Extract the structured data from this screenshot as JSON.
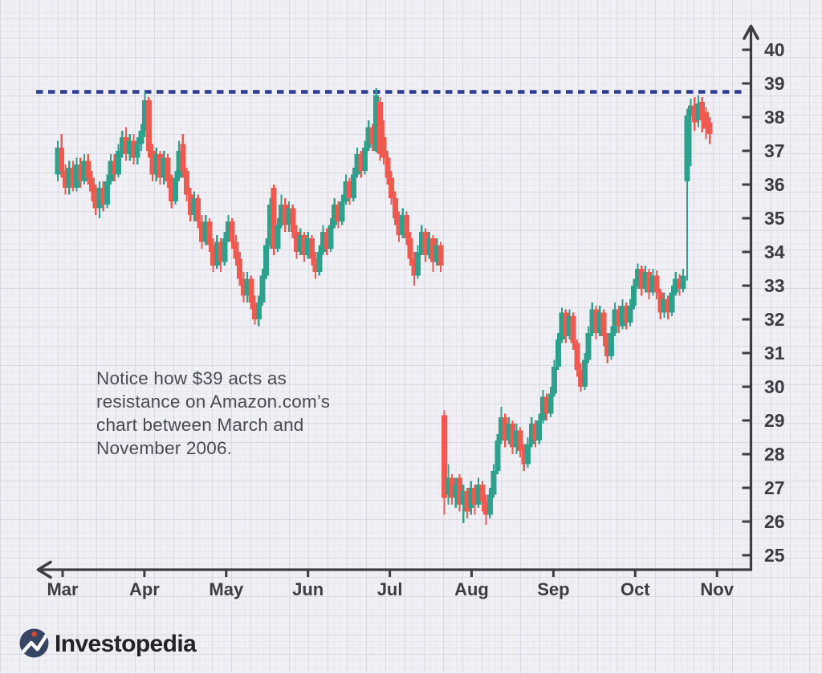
{
  "annotation": {
    "lines": [
      "Notice how $39 acts as",
      "resistance on Amazon.com’s",
      "chart between March and",
      "November 2006."
    ]
  },
  "logo": {
    "text": "Investopedia",
    "mark_colors": {
      "circle": "#374565",
      "dot": "#cf4a33",
      "line": "#ffffff"
    }
  },
  "chart_data": {
    "type": "candlestick",
    "description": "Amazon.com’s chart between March and November 2006",
    "x_ticks": [
      "Mar",
      "Apr",
      "May",
      "Jun",
      "Jul",
      "Aug",
      "Sep",
      "Oct",
      "Nov"
    ],
    "y_ticks": [
      40,
      39,
      38,
      37,
      36,
      35,
      34,
      33,
      32,
      31,
      30,
      29,
      28,
      27,
      26,
      25
    ],
    "y_axis_range": [
      25,
      40
    ],
    "grid": "faint graph-paper texture",
    "resistance_line": {
      "price": 38.75,
      "label_reference": "$39",
      "style": "dashed",
      "color": "#2e3d93"
    },
    "colors": {
      "up_candle": "#2da18c",
      "down_candle": "#ee5a50",
      "axis": "#3d3d44",
      "annotation_text": "#4a4a53",
      "background": "#f0eff4"
    },
    "candles_ohlc": [
      [
        36.3,
        37.3,
        36.1,
        37.1
      ],
      [
        37.1,
        37.5,
        36.2,
        36.4
      ],
      [
        36.4,
        36.6,
        35.7,
        35.9
      ],
      [
        35.9,
        36.7,
        35.7,
        36.5
      ],
      [
        36.5,
        36.7,
        35.8,
        35.9
      ],
      [
        35.9,
        36.8,
        35.8,
        36.6
      ],
      [
        36.6,
        36.8,
        35.9,
        36.1
      ],
      [
        36.1,
        36.9,
        36.0,
        36.7
      ],
      [
        36.7,
        36.9,
        36.0,
        36.2
      ],
      [
        36.2,
        36.4,
        35.5,
        35.8
      ],
      [
        35.8,
        36.0,
        35.1,
        35.3
      ],
      [
        35.3,
        36.1,
        35.0,
        35.9
      ],
      [
        35.9,
        36.1,
        35.2,
        35.4
      ],
      [
        35.4,
        36.3,
        35.3,
        36.1
      ],
      [
        36.1,
        36.9,
        36.0,
        36.7
      ],
      [
        36.7,
        36.9,
        36.1,
        36.3
      ],
      [
        36.3,
        37.2,
        36.2,
        37.0
      ],
      [
        37.0,
        37.6,
        36.8,
        37.4
      ],
      [
        37.4,
        37.7,
        36.7,
        36.9
      ],
      [
        36.9,
        37.5,
        36.7,
        37.3
      ],
      [
        37.3,
        37.5,
        36.6,
        36.8
      ],
      [
        36.8,
        37.4,
        36.6,
        37.2
      ],
      [
        37.2,
        37.8,
        37.0,
        37.6
      ],
      [
        37.6,
        38.75,
        37.4,
        38.5
      ],
      [
        38.5,
        38.6,
        36.8,
        37.0
      ],
      [
        37.0,
        37.2,
        36.1,
        36.3
      ],
      [
        36.3,
        37.1,
        36.1,
        36.9
      ],
      [
        36.9,
        37.0,
        36.0,
        36.2
      ],
      [
        36.2,
        37.0,
        36.0,
        36.8
      ],
      [
        36.8,
        36.9,
        35.9,
        36.1
      ],
      [
        36.1,
        36.3,
        35.3,
        35.5
      ],
      [
        35.5,
        36.4,
        35.4,
        36.2
      ],
      [
        36.2,
        37.3,
        36.1,
        37.0
      ],
      [
        37.2,
        37.5,
        36.2,
        36.4
      ],
      [
        36.4,
        36.5,
        35.5,
        35.7
      ],
      [
        35.7,
        35.9,
        34.9,
        35.1
      ],
      [
        35.1,
        35.8,
        34.9,
        35.6
      ],
      [
        35.6,
        35.7,
        34.7,
        34.9
      ],
      [
        34.9,
        35.1,
        34.1,
        34.3
      ],
      [
        34.3,
        35.1,
        34.2,
        34.9
      ],
      [
        34.9,
        35.0,
        34.0,
        34.2
      ],
      [
        34.2,
        34.4,
        33.4,
        33.6
      ],
      [
        33.6,
        34.5,
        33.5,
        34.3
      ],
      [
        34.3,
        34.4,
        33.4,
        33.7
      ],
      [
        33.7,
        34.6,
        33.6,
        34.4
      ],
      [
        34.4,
        35.1,
        34.3,
        34.9
      ],
      [
        34.9,
        35.0,
        34.1,
        34.3
      ],
      [
        34.3,
        34.5,
        33.6,
        33.8
      ],
      [
        33.8,
        34.0,
        33.0,
        33.2
      ],
      [
        33.2,
        33.4,
        32.5,
        32.7
      ],
      [
        32.7,
        33.4,
        32.5,
        33.2
      ],
      [
        33.2,
        33.3,
        32.3,
        32.5
      ],
      [
        32.5,
        32.7,
        31.85,
        32.0
      ],
      [
        32.0,
        32.7,
        31.8,
        32.5
      ],
      [
        32.5,
        33.5,
        32.4,
        33.3
      ],
      [
        33.3,
        34.4,
        33.2,
        34.2
      ],
      [
        34.2,
        35.6,
        34.1,
        35.4
      ],
      [
        35.9,
        36.0,
        33.9,
        34.1
      ],
      [
        34.1,
        35.0,
        34.0,
        34.8
      ],
      [
        34.8,
        35.7,
        34.7,
        35.4
      ],
      [
        35.4,
        35.6,
        34.6,
        34.8
      ],
      [
        34.8,
        35.5,
        34.6,
        35.3
      ],
      [
        35.3,
        35.4,
        34.4,
        34.6
      ],
      [
        34.6,
        34.8,
        33.8,
        34.0
      ],
      [
        34.0,
        34.7,
        33.9,
        34.5
      ],
      [
        34.5,
        34.6,
        33.7,
        33.9
      ],
      [
        33.9,
        34.6,
        33.8,
        34.4
      ],
      [
        34.4,
        34.5,
        33.6,
        33.8
      ],
      [
        33.8,
        34.0,
        33.2,
        33.4
      ],
      [
        33.4,
        34.2,
        33.3,
        34.0
      ],
      [
        34.0,
        34.8,
        33.9,
        34.6
      ],
      [
        34.6,
        34.7,
        33.9,
        34.1
      ],
      [
        34.1,
        35.0,
        34.0,
        34.8
      ],
      [
        34.8,
        35.6,
        34.7,
        35.4
      ],
      [
        35.4,
        35.5,
        34.7,
        34.9
      ],
      [
        34.9,
        35.7,
        34.8,
        35.5
      ],
      [
        35.5,
        36.3,
        35.4,
        36.1
      ],
      [
        36.1,
        36.2,
        35.4,
        35.6
      ],
      [
        35.6,
        36.5,
        35.5,
        36.3
      ],
      [
        36.3,
        37.1,
        36.2,
        36.9
      ],
      [
        36.9,
        37.0,
        36.2,
        36.4
      ],
      [
        36.4,
        37.3,
        36.3,
        37.1
      ],
      [
        37.1,
        37.9,
        37.0,
        37.7
      ],
      [
        37.7,
        37.8,
        37.0,
        37.2
      ],
      [
        37.0,
        38.86,
        36.95,
        38.65
      ],
      [
        38.45,
        38.6,
        36.7,
        36.9
      ],
      [
        37.4,
        37.9,
        36.6,
        36.8
      ],
      [
        36.8,
        37.0,
        36.0,
        36.2
      ],
      [
        36.2,
        36.4,
        35.4,
        35.6
      ],
      [
        35.6,
        35.8,
        34.8,
        35.0
      ],
      [
        35.0,
        35.2,
        34.3,
        34.5
      ],
      [
        34.5,
        35.3,
        34.4,
        35.1
      ],
      [
        35.1,
        35.2,
        34.2,
        34.4
      ],
      [
        34.4,
        34.6,
        33.6,
        33.8
      ],
      [
        33.8,
        34.0,
        33.0,
        33.3
      ],
      [
        33.3,
        34.2,
        33.2,
        34.0
      ],
      [
        34.0,
        34.8,
        33.9,
        34.6
      ],
      [
        34.6,
        34.7,
        33.7,
        33.9
      ],
      [
        33.9,
        34.6,
        33.8,
        34.4
      ],
      [
        34.4,
        34.5,
        33.4,
        33.7
      ],
      [
        33.7,
        34.4,
        33.6,
        34.2
      ],
      [
        34.2,
        34.3,
        33.4,
        33.6
      ],
      [
        29.15,
        29.3,
        26.2,
        26.7
      ],
      [
        26.8,
        27.7,
        26.5,
        27.3
      ],
      [
        27.3,
        27.4,
        26.5,
        26.7
      ],
      [
        26.7,
        27.3,
        26.4,
        27.1
      ],
      [
        27.3,
        27.4,
        26.3,
        26.5
      ],
      [
        26.5,
        27.1,
        25.95,
        26.9
      ],
      [
        26.9,
        27.0,
        26.1,
        26.3
      ],
      [
        26.4,
        27.2,
        26.2,
        27.0
      ],
      [
        27.0,
        27.1,
        26.2,
        26.5
      ],
      [
        26.5,
        27.3,
        26.4,
        27.1
      ],
      [
        27.1,
        27.2,
        26.3,
        26.6
      ],
      [
        26.6,
        26.8,
        25.9,
        26.2
      ],
      [
        26.2,
        27.0,
        26.1,
        26.8
      ],
      [
        26.8,
        27.7,
        26.7,
        27.5
      ],
      [
        27.5,
        28.6,
        27.4,
        28.4
      ],
      [
        28.4,
        29.4,
        28.3,
        29.1
      ],
      [
        29.1,
        29.2,
        28.2,
        28.4
      ],
      [
        28.4,
        29.1,
        28.3,
        28.9
      ],
      [
        28.9,
        29.0,
        28.0,
        28.2
      ],
      [
        28.2,
        28.9,
        28.0,
        28.7
      ],
      [
        28.7,
        28.8,
        27.9,
        28.1
      ],
      [
        28.1,
        28.3,
        27.5,
        27.7
      ],
      [
        27.7,
        28.5,
        27.6,
        28.3
      ],
      [
        28.3,
        29.1,
        28.2,
        28.9
      ],
      [
        28.9,
        29.0,
        28.2,
        28.4
      ],
      [
        28.4,
        29.2,
        28.3,
        29.0
      ],
      [
        29.0,
        29.9,
        28.9,
        29.7
      ],
      [
        29.7,
        29.8,
        29.0,
        29.2
      ],
      [
        29.2,
        30.0,
        29.1,
        29.8
      ],
      [
        29.8,
        30.8,
        29.7,
        30.6
      ],
      [
        30.6,
        31.6,
        30.5,
        31.4
      ],
      [
        31.4,
        32.35,
        31.3,
        32.2
      ],
      [
        32.2,
        32.3,
        31.3,
        31.5
      ],
      [
        31.5,
        32.3,
        31.4,
        32.1
      ],
      [
        32.1,
        32.2,
        31.1,
        31.3
      ],
      [
        31.3,
        31.4,
        30.3,
        30.5
      ],
      [
        30.5,
        30.7,
        29.85,
        30.0
      ],
      [
        30.0,
        31.0,
        29.9,
        30.8
      ],
      [
        30.8,
        31.8,
        30.7,
        31.6
      ],
      [
        31.6,
        32.5,
        31.5,
        32.3
      ],
      [
        32.3,
        32.4,
        31.4,
        31.6
      ],
      [
        31.6,
        32.4,
        31.5,
        32.2
      ],
      [
        32.2,
        32.3,
        31.2,
        31.5
      ],
      [
        31.5,
        31.6,
        30.7,
        30.9
      ],
      [
        30.9,
        31.8,
        30.8,
        31.6
      ],
      [
        31.6,
        32.5,
        31.5,
        32.3
      ],
      [
        32.3,
        32.4,
        31.6,
        31.8
      ],
      [
        31.8,
        32.6,
        31.7,
        32.4
      ],
      [
        32.4,
        32.5,
        31.7,
        31.9
      ],
      [
        31.9,
        32.6,
        31.8,
        32.4
      ],
      [
        32.4,
        33.2,
        32.3,
        33.0
      ],
      [
        33.0,
        33.65,
        32.9,
        33.5
      ],
      [
        33.5,
        33.6,
        32.7,
        32.9
      ],
      [
        32.9,
        33.6,
        32.8,
        33.4
      ],
      [
        33.4,
        33.5,
        32.6,
        32.8
      ],
      [
        32.8,
        33.5,
        32.7,
        33.3
      ],
      [
        33.3,
        33.45,
        32.6,
        32.8
      ],
      [
        32.8,
        32.9,
        32.0,
        32.2
      ],
      [
        32.2,
        32.8,
        32.05,
        32.6
      ],
      [
        32.6,
        32.7,
        32.0,
        32.2
      ],
      [
        32.2,
        33.0,
        32.1,
        32.8
      ],
      [
        32.8,
        33.4,
        32.7,
        33.2
      ],
      [
        33.2,
        33.35,
        32.7,
        32.9
      ],
      [
        32.9,
        33.5,
        32.8,
        33.3
      ],
      [
        36.1,
        38.25,
        33.15,
        38.05
      ],
      [
        38.05,
        38.55,
        36.55,
        38.35
      ],
      [
        38.35,
        38.6,
        37.6,
        37.85
      ],
      [
        37.9,
        38.65,
        37.7,
        38.4
      ],
      [
        38.45,
        38.6,
        37.55,
        37.9
      ],
      [
        38.15,
        38.3,
        37.35,
        37.65
      ],
      [
        37.85,
        38.0,
        37.2,
        37.5
      ]
    ]
  }
}
